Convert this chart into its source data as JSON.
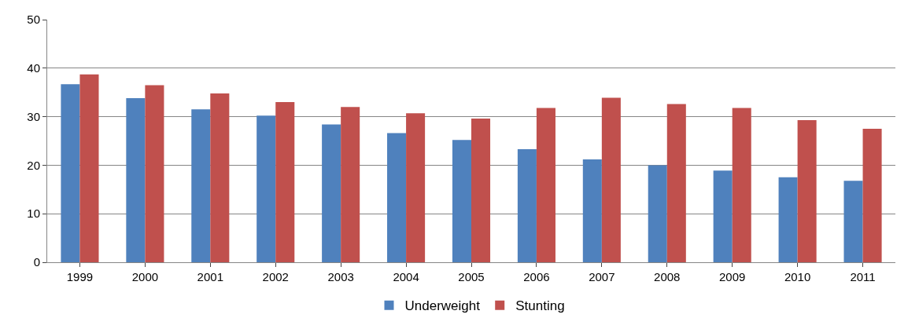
{
  "chart_data": {
    "type": "bar",
    "categories": [
      "1999",
      "2000",
      "2001",
      "2002",
      "2003",
      "2004",
      "2005",
      "2006",
      "2007",
      "2008",
      "2009",
      "2010",
      "2011"
    ],
    "series": [
      {
        "name": "Underweight",
        "color": "#4f81bd",
        "values": [
          36.7,
          33.8,
          31.5,
          30.2,
          28.4,
          26.6,
          25.2,
          23.3,
          21.2,
          20.0,
          18.9,
          17.5,
          16.8
        ]
      },
      {
        "name": "Stunting",
        "color": "#c0504d",
        "values": [
          38.7,
          36.5,
          34.8,
          33.0,
          32.0,
          30.7,
          29.6,
          31.8,
          33.9,
          32.6,
          31.8,
          29.3,
          27.5
        ]
      }
    ],
    "ylim": [
      0,
      50
    ],
    "yticks": [
      0,
      10,
      20,
      30,
      40,
      50
    ],
    "grid": "y",
    "legend": "bottom"
  }
}
